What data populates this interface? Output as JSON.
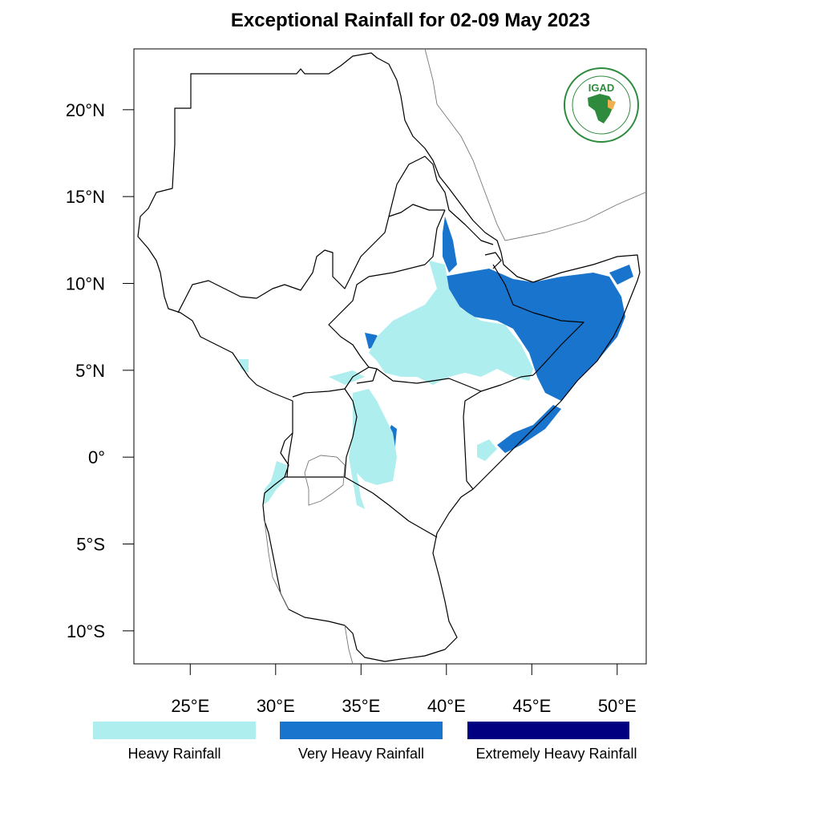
{
  "title": "Exceptional Rainfall for 02-09 May 2023",
  "map": {
    "lon_range": [
      21.7,
      51.7
    ],
    "lat_range": [
      -11.9,
      23.5
    ],
    "lat_ticks": [
      {
        "value": 20,
        "label": "20°N"
      },
      {
        "value": 15,
        "label": "15°N"
      },
      {
        "value": 10,
        "label": "10°N"
      },
      {
        "value": 5,
        "label": "5°N"
      },
      {
        "value": 0,
        "label": "0°"
      },
      {
        "value": -5,
        "label": "5°S"
      },
      {
        "value": -10,
        "label": "10°S"
      }
    ],
    "lon_ticks": [
      {
        "value": 25,
        "label": "25°E"
      },
      {
        "value": 30,
        "label": "30°E"
      },
      {
        "value": 35,
        "label": "35°E"
      },
      {
        "value": 40,
        "label": "40°E"
      },
      {
        "value": 45,
        "label": "45°E"
      },
      {
        "value": 50,
        "label": "50°E"
      }
    ],
    "colors": {
      "heavy": "#afeeee",
      "very_heavy": "#1874cd",
      "extremely_heavy": "#000080",
      "border": "#000000",
      "coast": "#777777"
    }
  },
  "legend": [
    {
      "label": "Heavy Rainfall",
      "color": "#afeeee"
    },
    {
      "label": "Very Heavy Rainfall",
      "color": "#1874cd"
    },
    {
      "label": "Extremely Heavy Rainfall",
      "color": "#000080"
    }
  ],
  "logo": {
    "text": "IGAD",
    "icon": "igad-logo-icon",
    "color": "#2e8b3d"
  }
}
